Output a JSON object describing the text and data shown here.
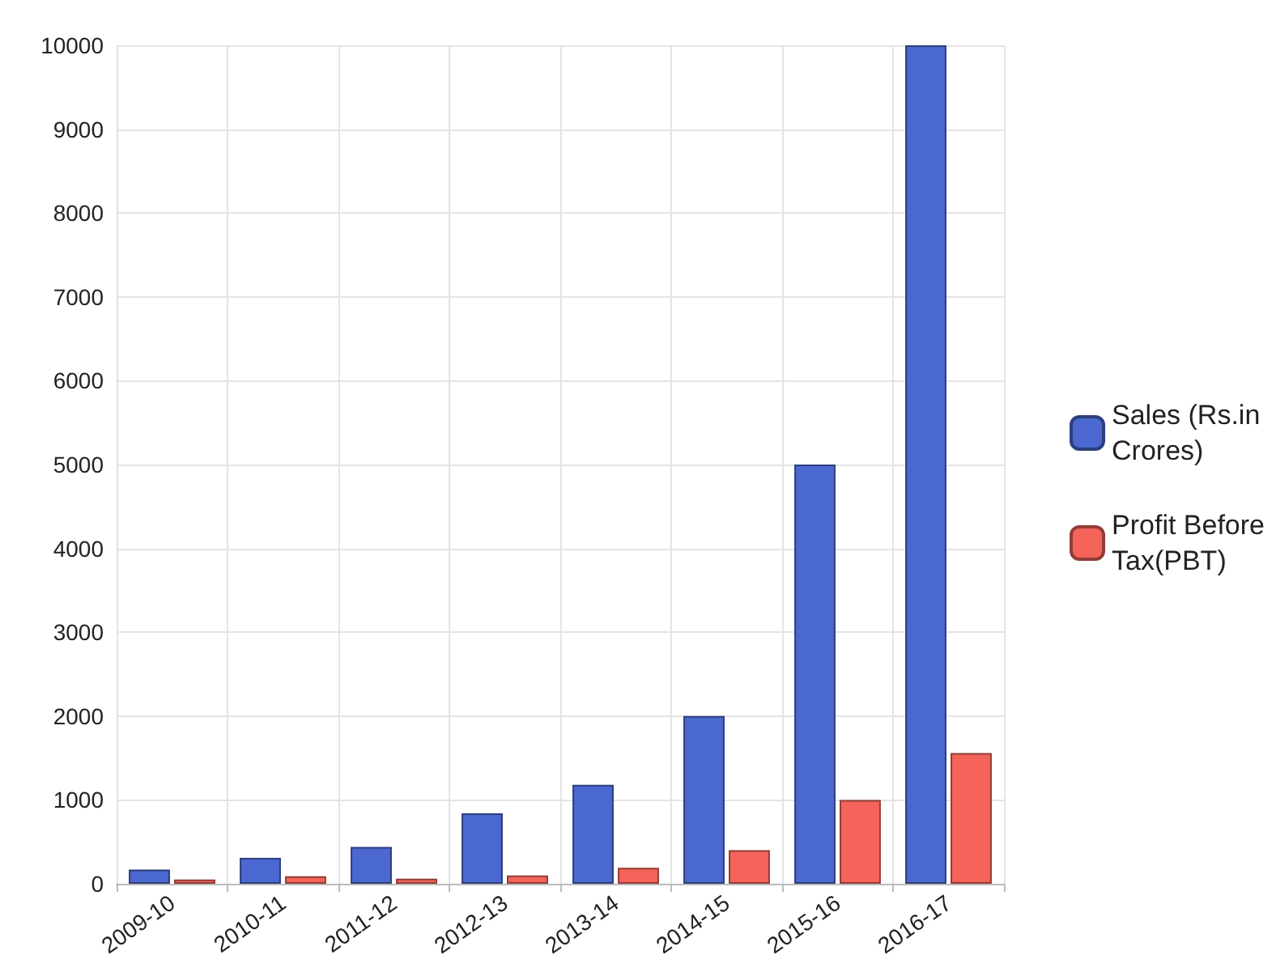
{
  "chart_data": {
    "type": "bar",
    "categories": [
      "2009-10",
      "2010-11",
      "2011-12",
      "2012-13",
      "2013-14",
      "2014-15",
      "2015-16",
      "2016-17"
    ],
    "series": [
      {
        "name": "Sales (Rs.in Crores)",
        "color": "#4a68cf",
        "values": [
          170,
          310,
          440,
          840,
          1180,
          2000,
          5000,
          10000
        ]
      },
      {
        "name": "Profit Before Tax(PBT)",
        "color": "#f4645a",
        "values": [
          50,
          90,
          60,
          100,
          190,
          400,
          1000,
          1560
        ]
      }
    ],
    "ylim": [
      0,
      10000
    ],
    "yticks": [
      0,
      1000,
      2000,
      3000,
      4000,
      5000,
      6000,
      7000,
      8000,
      9000,
      10000
    ],
    "grid": true,
    "legend": "right"
  }
}
